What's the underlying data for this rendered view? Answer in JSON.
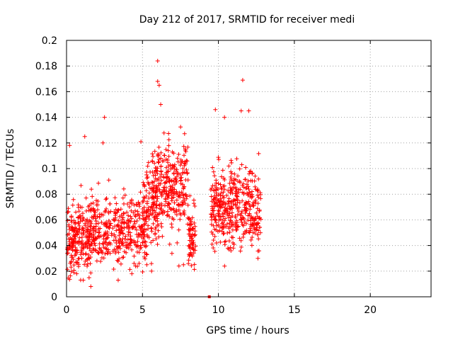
{
  "chart_data": {
    "type": "scatter",
    "title": "Day 212 of 2017, SRMTID for receiver medi",
    "xlabel": "GPS time / hours",
    "ylabel": "SRMTID / TECUs",
    "xlim": [
      0,
      24
    ],
    "ylim": [
      0,
      0.2
    ],
    "x_ticks": [
      0,
      5,
      10,
      15,
      20
    ],
    "x_tick_labels": [
      "0",
      "5",
      "10",
      "15",
      "20"
    ],
    "y_ticks": [
      0,
      0.02,
      0.04,
      0.06,
      0.08,
      0.1,
      0.12,
      0.14,
      0.16,
      0.18,
      0.2
    ],
    "y_tick_labels": [
      "0",
      "0.02",
      "0.04",
      "0.06",
      "0.08",
      "0.1",
      "0.12",
      "0.14",
      "0.16",
      "0.18",
      "0.2"
    ],
    "grid": true,
    "marker": "+",
    "color": "#ff0000",
    "zero_marker": {
      "x": 9.4,
      "y": 0
    },
    "clusters": [
      {
        "x_start": 0.0,
        "x_end": 1.6,
        "y_center": 0.045,
        "y_spread": 0.018,
        "count": 230,
        "seed": 11
      },
      {
        "x_start": 1.6,
        "x_end": 5.6,
        "y_center": 0.052,
        "y_spread": 0.017,
        "count": 380,
        "seed": 23
      },
      {
        "x_start": 5.0,
        "x_end": 6.0,
        "y_center": 0.07,
        "y_spread": 0.02,
        "count": 80,
        "seed": 37
      },
      {
        "x_start": 5.6,
        "x_end": 8.0,
        "y_center": 0.085,
        "y_spread": 0.022,
        "count": 300,
        "seed": 41
      },
      {
        "x_start": 8.0,
        "x_end": 8.5,
        "y_center": 0.048,
        "y_spread": 0.015,
        "count": 70,
        "seed": 53
      },
      {
        "x_start": 9.5,
        "x_end": 12.8,
        "y_center": 0.07,
        "y_spread": 0.02,
        "count": 420,
        "seed": 67
      }
    ],
    "outliers": [
      {
        "x": 6.0,
        "y": 0.184
      },
      {
        "x": 6.0,
        "y": 0.168
      },
      {
        "x": 6.1,
        "y": 0.165
      },
      {
        "x": 6.2,
        "y": 0.15
      },
      {
        "x": 11.6,
        "y": 0.169
      },
      {
        "x": 9.8,
        "y": 0.146
      },
      {
        "x": 12.0,
        "y": 0.145
      },
      {
        "x": 11.5,
        "y": 0.145
      },
      {
        "x": 2.5,
        "y": 0.14
      },
      {
        "x": 10.4,
        "y": 0.14
      },
      {
        "x": 0.2,
        "y": 0.118
      },
      {
        "x": 1.2,
        "y": 0.125
      },
      {
        "x": 2.4,
        "y": 0.12
      },
      {
        "x": 4.9,
        "y": 0.121
      },
      {
        "x": 1.6,
        "y": 0.008
      },
      {
        "x": 1.1,
        "y": 0.013
      },
      {
        "x": 3.4,
        "y": 0.013
      },
      {
        "x": 4.3,
        "y": 0.018
      },
      {
        "x": 5.6,
        "y": 0.02
      },
      {
        "x": 7.4,
        "y": 0.024
      },
      {
        "x": 7.7,
        "y": 0.025
      },
      {
        "x": 12.6,
        "y": 0.03
      },
      {
        "x": 0.3,
        "y": 0.027
      },
      {
        "x": 2.0,
        "y": 0.028
      }
    ]
  }
}
